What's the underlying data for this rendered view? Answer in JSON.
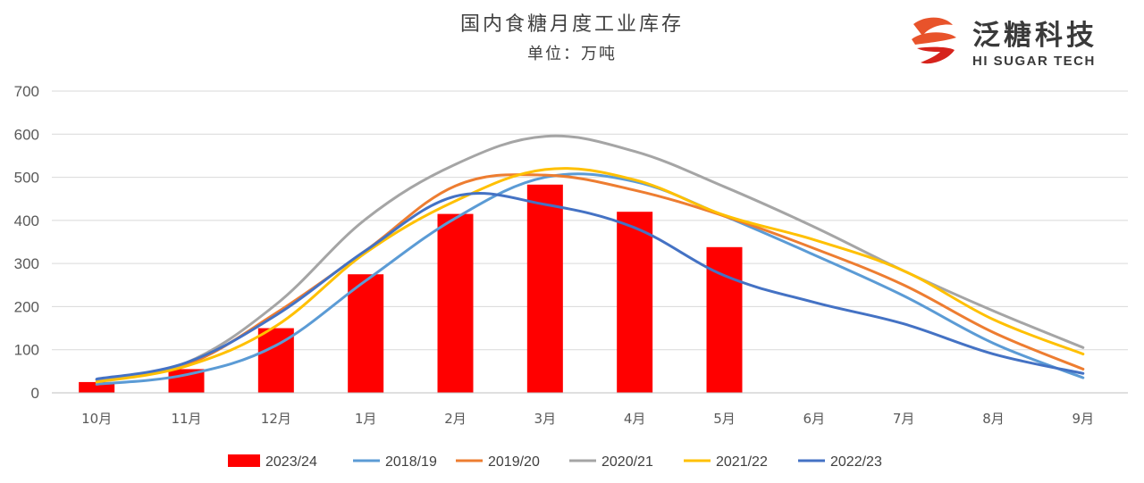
{
  "brand": {
    "name_cn": "泛糖科技",
    "name_en": "HI SUGAR TECH",
    "logo_icon": "hi-sugar-logo-icon",
    "logo_colors": [
      "#e8532b",
      "#d6231c"
    ]
  },
  "chart_data": {
    "type": "bar+line",
    "title": "国内食糖月度工业库存",
    "subtitle": "单位：万吨",
    "categories": [
      "10月",
      "11月",
      "12月",
      "1月",
      "2月",
      "3月",
      "4月",
      "5月",
      "6月",
      "7月",
      "8月",
      "9月"
    ],
    "ylim": [
      0,
      700
    ],
    "yticks": [
      0,
      100,
      200,
      300,
      400,
      500,
      600,
      700
    ],
    "grid": true,
    "legend_position": "bottom",
    "bars": {
      "name": "2023/24",
      "color": "#ff0000",
      "values": [
        25,
        55,
        150,
        275,
        415,
        483,
        420,
        338
      ]
    },
    "series": [
      {
        "name": "2018/19",
        "color": "#5b9bd5",
        "values": [
          20,
          42,
          110,
          260,
          405,
          500,
          490,
          410,
          320,
          225,
          115,
          35
        ]
      },
      {
        "name": "2019/20",
        "color": "#ed7d31",
        "values": [
          30,
          65,
          185,
          330,
          480,
          505,
          470,
          410,
          335,
          250,
          140,
          55
        ]
      },
      {
        "name": "2020/21",
        "color": "#a5a5a5",
        "values": [
          30,
          70,
          205,
          403,
          530,
          595,
          560,
          478,
          385,
          283,
          190,
          105
        ]
      },
      {
        "name": "2021/22",
        "color": "#ffc000",
        "values": [
          25,
          62,
          155,
          325,
          445,
          518,
          494,
          412,
          355,
          283,
          170,
          90
        ]
      },
      {
        "name": "2022/23",
        "color": "#4472c4",
        "values": [
          32,
          70,
          180,
          330,
          456,
          437,
          383,
          272,
          210,
          160,
          90,
          45
        ]
      }
    ]
  }
}
